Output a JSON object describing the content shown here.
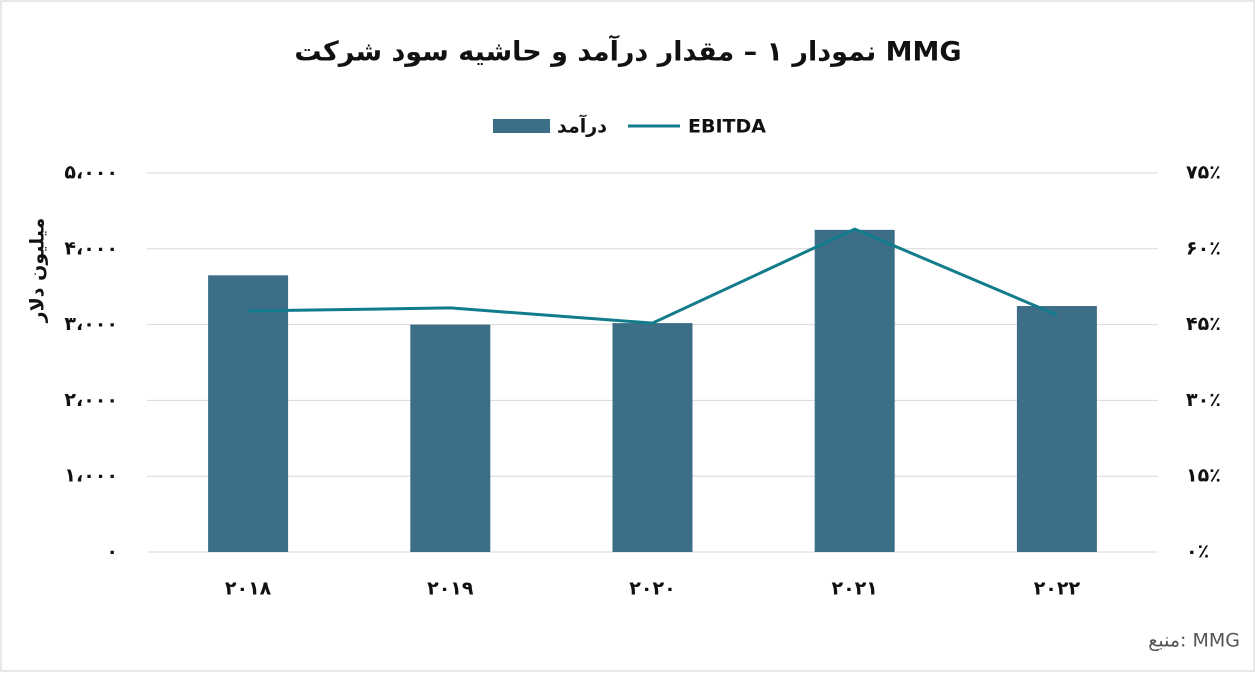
{
  "chart_data": {
    "type": "bar_line",
    "title": "نمودار ۱ – مقدار درآمد و حاشیه سود شرکت MMG",
    "categories": [
      "۲۰۱۸",
      "۲۰۱۹",
      "۲۰۲۰",
      "۲۰۲۱",
      "۲۰۲۲"
    ],
    "series": [
      {
        "name": "درآمد",
        "color": "#3d6e88",
        "type": "bar",
        "values": [
          3650,
          3000,
          3020,
          4250,
          3245
        ]
      },
      {
        "name": "EBITDA",
        "color": "#127c8c",
        "type": "line",
        "axis": "y2",
        "values": [
          47.7,
          48.3,
          45.3,
          63.9,
          46.9
        ]
      }
    ],
    "ylabel": "میلیون دلار",
    "ylim": [
      0,
      5000
    ],
    "yticks": [
      {
        "value": 0,
        "label": "۰"
      },
      {
        "value": 1000,
        "label": "۱،۰۰۰"
      },
      {
        "value": 2000,
        "label": "۲،۰۰۰"
      },
      {
        "value": 3000,
        "label": "۳،۰۰۰"
      },
      {
        "value": 4000,
        "label": "۴،۰۰۰"
      },
      {
        "value": 5000,
        "label": "۵،۰۰۰"
      }
    ],
    "y2lim": [
      0,
      75
    ],
    "y2ticks": [
      {
        "value": 0,
        "label": "۰٪"
      },
      {
        "value": 15,
        "label": "۱۵٪"
      },
      {
        "value": 30,
        "label": "۳۰٪"
      },
      {
        "value": 45,
        "label": "۴۵٪"
      },
      {
        "value": 60,
        "label": "۶۰٪"
      },
      {
        "value": 75,
        "label": "۷۵٪"
      }
    ],
    "grid": true,
    "source": "منبع: MMG"
  }
}
